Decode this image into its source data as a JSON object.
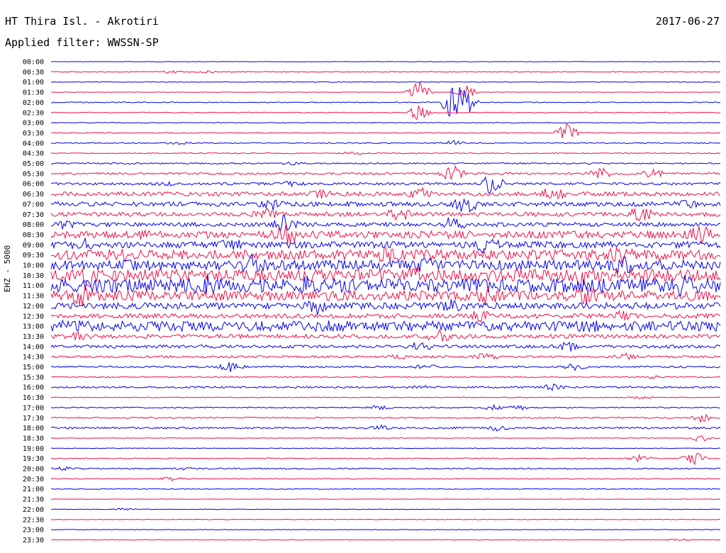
{
  "header": {
    "station": "HT Thira Isl. - Akrotiri",
    "date": "2017-06-27",
    "filter": "Applied filter: WWSSN-SP"
  },
  "colors": {
    "odd_trace": "#0000ee",
    "even_trace": "#ee1144",
    "text": "#000000"
  },
  "chart_data": {
    "type": "line",
    "subtype": "helicorder-seismogram",
    "title": "HT Thira Isl. - Akrotiri",
    "date": "2017-06-27",
    "filter": "WWSSN-SP",
    "ylabel": "EHZ - 5000",
    "rows": [
      {
        "label": "00:00",
        "color": "blue",
        "activity": 0.1,
        "events": []
      },
      {
        "label": "00:30",
        "color": "red",
        "activity": 0.18,
        "events": [
          [
            18,
            0.6
          ],
          [
            23,
            0.4
          ]
        ]
      },
      {
        "label": "01:00",
        "color": "blue",
        "activity": 0.15,
        "events": []
      },
      {
        "label": "01:30",
        "color": "red",
        "activity": 0.12,
        "events": [
          [
            55,
            5.0
          ],
          [
            62,
            3.0
          ]
        ]
      },
      {
        "label": "02:00",
        "color": "blue",
        "activity": 0.2,
        "events": [
          [
            60,
            8.0
          ],
          [
            62,
            6.0
          ]
        ]
      },
      {
        "label": "02:30",
        "color": "red",
        "activity": 0.2,
        "events": [
          [
            55,
            4.0
          ]
        ]
      },
      {
        "label": "03:00",
        "color": "blue",
        "activity": 0.18,
        "events": []
      },
      {
        "label": "03:30",
        "color": "red",
        "activity": 0.2,
        "events": [
          [
            77,
            4.0
          ]
        ]
      },
      {
        "label": "04:00",
        "color": "blue",
        "activity": 0.25,
        "events": [
          [
            19,
            0.7
          ],
          [
            60,
            1.0
          ]
        ]
      },
      {
        "label": "04:30",
        "color": "red",
        "activity": 0.22,
        "events": [
          [
            45,
            0.6
          ]
        ]
      },
      {
        "label": "05:00",
        "color": "blue",
        "activity": 0.3,
        "events": [
          [
            36,
            0.5
          ]
        ]
      },
      {
        "label": "05:30",
        "color": "red",
        "activity": 0.45,
        "events": [
          [
            60,
            4.0
          ],
          [
            82,
            3.0
          ],
          [
            90,
            2.0
          ]
        ]
      },
      {
        "label": "06:00",
        "color": "blue",
        "activity": 0.55,
        "events": [
          [
            17,
            0.6
          ],
          [
            36,
            0.8
          ],
          [
            66,
            5.0
          ]
        ]
      },
      {
        "label": "06:30",
        "color": "red",
        "activity": 0.9,
        "events": [
          [
            40,
            1.5
          ],
          [
            55,
            2.5
          ],
          [
            75,
            3.0
          ]
        ]
      },
      {
        "label": "07:00",
        "color": "blue",
        "activity": 1.0,
        "events": [
          [
            33,
            2.0
          ],
          [
            62,
            4.0
          ],
          [
            95,
            1.0
          ]
        ]
      },
      {
        "label": "07:30",
        "color": "red",
        "activity": 0.9,
        "events": [
          [
            32,
            2.0
          ],
          [
            52,
            3.0
          ],
          [
            88,
            3.5
          ]
        ]
      },
      {
        "label": "08:00",
        "color": "blue",
        "activity": 0.9,
        "events": [
          [
            2,
            1.5
          ],
          [
            35,
            4.0
          ],
          [
            60,
            3.0
          ]
        ]
      },
      {
        "label": "08:30",
        "color": "red",
        "activity": 1.6,
        "events": [
          [
            14,
            1.0
          ],
          [
            35,
            4.0
          ],
          [
            97,
            3.0
          ]
        ]
      },
      {
        "label": "09:00",
        "color": "blue",
        "activity": 1.4,
        "events": [
          [
            5,
            1.5
          ],
          [
            27,
            1.5
          ],
          [
            65,
            3.0
          ]
        ]
      },
      {
        "label": "09:30",
        "color": "red",
        "activity": 2.2,
        "events": [
          [
            10,
            2.0
          ],
          [
            50,
            2.0
          ],
          [
            85,
            2.5
          ]
        ]
      },
      {
        "label": "10:00",
        "color": "blue",
        "activity": 2.2,
        "events": [
          [
            30,
            3.0
          ],
          [
            55,
            3.5
          ],
          [
            85,
            3.0
          ]
        ]
      },
      {
        "label": "10:30",
        "color": "red",
        "activity": 2.6,
        "events": [
          [
            6,
            3.0
          ],
          [
            55,
            3.0
          ],
          [
            80,
            3.0
          ]
        ]
      },
      {
        "label": "11:00",
        "color": "blue",
        "activity": 3.0,
        "events": [
          [
            23,
            2.0
          ],
          [
            38,
            2.5
          ],
          [
            95,
            3.0
          ]
        ]
      },
      {
        "label": "11:30",
        "color": "red",
        "activity": 2.2,
        "events": [
          [
            5,
            3.0
          ],
          [
            65,
            2.5
          ],
          [
            80,
            3.0
          ]
        ]
      },
      {
        "label": "12:00",
        "color": "blue",
        "activity": 1.4,
        "events": [
          [
            40,
            3.0
          ],
          [
            60,
            2.0
          ]
        ]
      },
      {
        "label": "12:30",
        "color": "red",
        "activity": 1.0,
        "events": [
          [
            64,
            2.5
          ],
          [
            85,
            2.0
          ]
        ]
      },
      {
        "label": "13:00",
        "color": "blue",
        "activity": 2.2,
        "events": [
          [
            3,
            1.0
          ],
          [
            40,
            1.0
          ],
          [
            80,
            1.5
          ]
        ]
      },
      {
        "label": "13:30",
        "color": "red",
        "activity": 0.9,
        "events": [
          [
            4,
            1.0
          ],
          [
            58,
            2.5
          ]
        ]
      },
      {
        "label": "14:00",
        "color": "blue",
        "activity": 0.7,
        "events": [
          [
            55,
            2.0
          ],
          [
            77,
            2.5
          ]
        ]
      },
      {
        "label": "14:30",
        "color": "red",
        "activity": 0.5,
        "events": [
          [
            52,
            0.7
          ],
          [
            65,
            1.5
          ],
          [
            86,
            1.0
          ]
        ]
      },
      {
        "label": "15:00",
        "color": "blue",
        "activity": 0.4,
        "events": [
          [
            27,
            2.5
          ],
          [
            56,
            1.0
          ],
          [
            78,
            1.5
          ]
        ]
      },
      {
        "label": "15:30",
        "color": "red",
        "activity": 0.25,
        "events": [
          [
            90,
            0.6
          ]
        ]
      },
      {
        "label": "16:00",
        "color": "blue",
        "activity": 0.4,
        "events": [
          [
            55,
            1.0
          ],
          [
            75,
            1.2
          ]
        ]
      },
      {
        "label": "16:30",
        "color": "red",
        "activity": 0.18,
        "events": [
          [
            88,
            0.6
          ]
        ]
      },
      {
        "label": "17:00",
        "color": "blue",
        "activity": 0.25,
        "events": [
          [
            49,
            1.0
          ],
          [
            66,
            1.0
          ],
          [
            70,
            1.0
          ]
        ]
      },
      {
        "label": "17:30",
        "color": "red",
        "activity": 0.3,
        "events": [
          [
            97,
            2.0
          ]
        ]
      },
      {
        "label": "18:00",
        "color": "blue",
        "activity": 0.4,
        "events": [
          [
            49,
            1.0
          ],
          [
            67,
            1.2
          ]
        ]
      },
      {
        "label": "18:30",
        "color": "red",
        "activity": 0.15,
        "events": [
          [
            97,
            1.5
          ]
        ]
      },
      {
        "label": "19:00",
        "color": "blue",
        "activity": 0.12,
        "events": []
      },
      {
        "label": "19:30",
        "color": "red",
        "activity": 0.25,
        "events": [
          [
            88,
            1.5
          ],
          [
            96,
            3.0
          ]
        ]
      },
      {
        "label": "20:00",
        "color": "blue",
        "activity": 0.3,
        "events": [
          [
            2,
            0.6
          ],
          [
            20,
            0.8
          ]
        ]
      },
      {
        "label": "20:30",
        "color": "red",
        "activity": 0.2,
        "events": [
          [
            18,
            0.8
          ]
        ]
      },
      {
        "label": "21:00",
        "color": "blue",
        "activity": 0.18,
        "events": []
      },
      {
        "label": "21:30",
        "color": "red",
        "activity": 0.12,
        "events": []
      },
      {
        "label": "22:00",
        "color": "blue",
        "activity": 0.14,
        "events": [
          [
            11,
            0.6
          ]
        ]
      },
      {
        "label": "22:30",
        "color": "red",
        "activity": 0.12,
        "events": []
      },
      {
        "label": "23:00",
        "color": "blue",
        "activity": 0.12,
        "events": []
      },
      {
        "label": "23:30",
        "color": "red",
        "activity": 0.15,
        "events": [
          [
            94,
            0.4
          ]
        ]
      }
    ]
  }
}
